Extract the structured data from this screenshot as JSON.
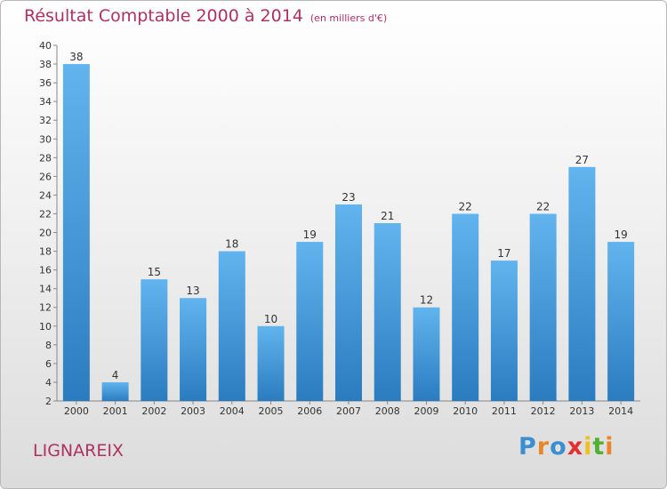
{
  "chart_data": {
    "type": "bar",
    "title": "Résultat Comptable 2000 à 2014",
    "subtitle": "(en milliers d'€)",
    "categories": [
      "2000",
      "2001",
      "2002",
      "2003",
      "2004",
      "2005",
      "2006",
      "2007",
      "2008",
      "2009",
      "2010",
      "2011",
      "2012",
      "2013",
      "2014"
    ],
    "values": [
      38,
      4,
      15,
      13,
      18,
      10,
      19,
      23,
      21,
      12,
      22,
      17,
      22,
      27,
      19
    ],
    "ylim": [
      2,
      40
    ],
    "yticks": [
      2,
      4,
      6,
      8,
      10,
      12,
      14,
      16,
      18,
      20,
      22,
      24,
      26,
      28,
      30,
      32,
      34,
      36,
      38,
      40
    ],
    "grid": false,
    "xlabel": "",
    "ylabel": ""
  },
  "colors": {
    "bar_light": "#62b4ee",
    "bar_dark": "#2a7cc0",
    "title": "#b03060"
  },
  "footer": {
    "commune": "LIGNAREIX",
    "logo_letters": [
      "P",
      "r",
      "o",
      "x",
      "i",
      "t",
      "i"
    ],
    "logo_colors": [
      "#3a8fd0",
      "#e8862a",
      "#3a8fd0",
      "#e03030",
      "#f0c020",
      "#50b030",
      "#e8862a"
    ]
  }
}
